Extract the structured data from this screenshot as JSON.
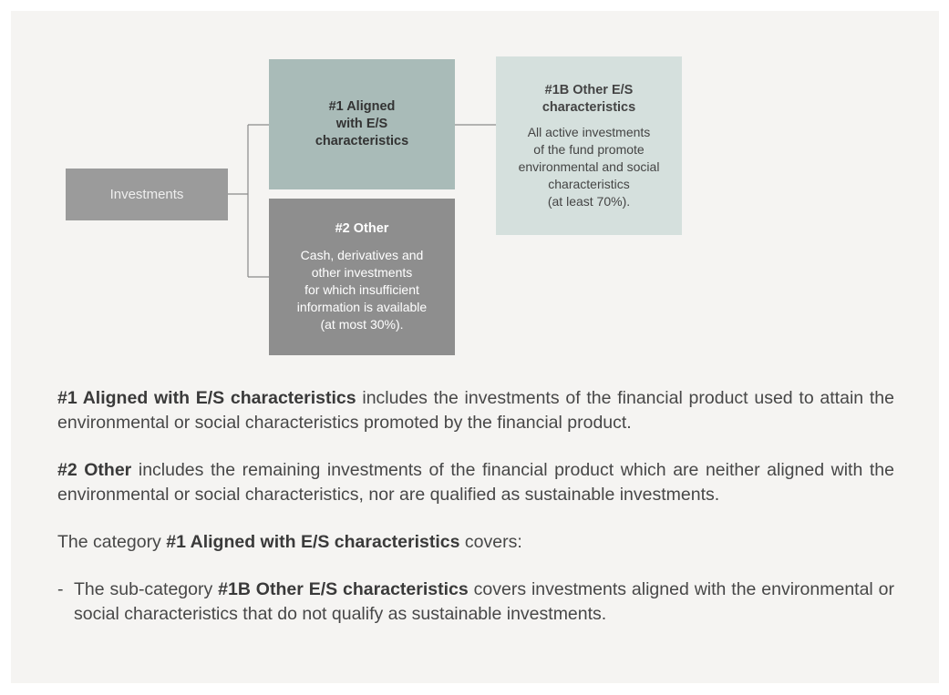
{
  "nodes": [
    {
      "title_lines": [
        "Investments"
      ]
    },
    {
      "title_lines": [
        "#1 Aligned",
        "with E/S",
        "characteristics"
      ]
    },
    {
      "title_lines": [
        "#2 Other"
      ],
      "body_lines": [
        "Cash, derivatives and",
        "other investments",
        "for which insufficient",
        "information is available",
        "(at most 30%)."
      ]
    },
    {
      "title_lines": [
        "#1B Other E/S",
        "characteristics"
      ],
      "body_lines": [
        "All active investments",
        "of the fund promote",
        "environmental and social",
        "characteristics",
        "(at least 70%)."
      ]
    }
  ],
  "paragraphs": [
    {
      "parts": [
        {
          "text": "#1 Aligned with E/S characteristics",
          "bold": true
        },
        {
          "text": " includes the investments of the financial product used to attain the environmental or social characteristics promoted by the financial product.",
          "bold": false
        }
      ]
    },
    {
      "parts": [
        {
          "text": "#2 Other",
          "bold": true
        },
        {
          "text": " includes the remaining investments of the financial product which are neither aligned with the environmental or social characteristics, nor are qualified as sustainable investments.",
          "bold": false
        }
      ]
    },
    {
      "parts": [
        {
          "text": "The category ",
          "bold": false
        },
        {
          "text": "#1 Aligned with E/S characteristics",
          "bold": true
        },
        {
          "text": " covers:",
          "bold": false
        }
      ]
    }
  ],
  "list": [
    {
      "marker": "-",
      "parts": [
        {
          "text": "The sub-category ",
          "bold": false
        },
        {
          "text": "#1B Other E/S characteristics",
          "bold": true
        },
        {
          "text": " covers investments aligned with the environmental or social characteristics that do not qualify as sustainable investments.",
          "bold": false
        }
      ]
    }
  ]
}
